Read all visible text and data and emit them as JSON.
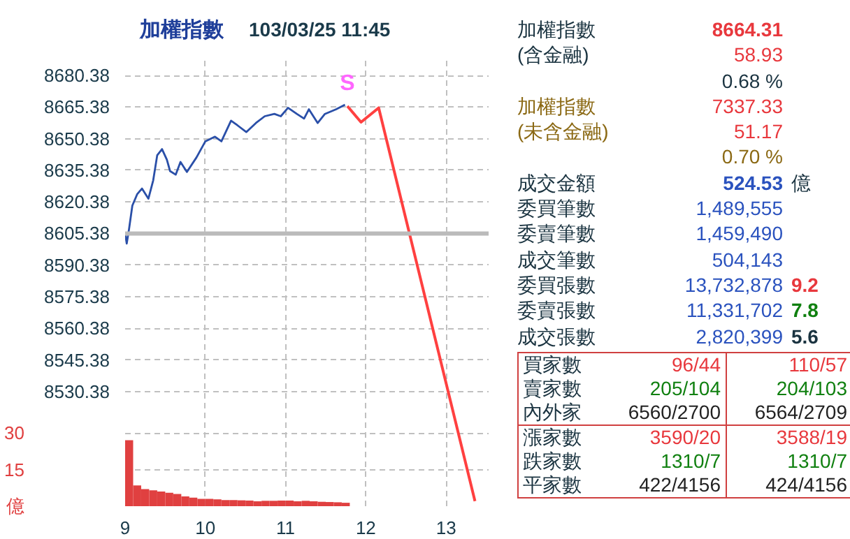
{
  "chart_data": [
    {
      "type": "line",
      "title": "加權指數",
      "subtitle": "103/03/25 11:45",
      "xlim": [
        9,
        13.53
      ],
      "xticks": [
        9,
        10,
        11,
        12,
        13
      ],
      "ylim": [
        8476,
        8688
      ],
      "yticks": [
        8530.38,
        8545.38,
        8560.38,
        8575.38,
        8590.38,
        8605.38,
        8620.38,
        8635.38,
        8650.38,
        8665.38,
        8680.38
      ],
      "y2lim": [
        0,
        183
      ],
      "y2ticks": [
        {
          "value": 0,
          "label": "億"
        },
        15,
        30
      ],
      "grid": true,
      "line_style": "solid",
      "ref_lines": [
        {
          "axis": "y",
          "value": 8605.38,
          "color": "#bbbbbb"
        }
      ],
      "annotations": [
        "S"
      ],
      "series": [
        {
          "color": "#2a4fa8",
          "x": [
            9.0,
            9.02,
            9.05,
            9.09,
            9.15,
            9.21,
            9.29,
            9.35,
            9.4,
            9.46,
            9.52,
            9.56,
            9.63,
            9.69,
            9.77,
            9.89,
            10.0,
            10.12,
            10.2,
            10.32,
            10.4,
            10.51,
            10.63,
            10.74,
            10.86,
            10.94,
            11.03,
            11.14,
            11.23,
            11.29,
            11.4,
            11.49,
            11.63,
            11.74
          ],
          "values": [
            8605.5,
            8600.6,
            8607.8,
            8618.6,
            8624.0,
            8626.7,
            8621.9,
            8630.6,
            8642.5,
            8645.4,
            8640.4,
            8635.0,
            8633.3,
            8639.3,
            8634.6,
            8641.5,
            8649.1,
            8651.3,
            8649.1,
            8658.9,
            8656.7,
            8653.5,
            8657.8,
            8661.0,
            8662.1,
            8661.0,
            8665.0,
            8662.1,
            8659.9,
            8664.3,
            8657.8,
            8662.1,
            8664.3,
            8666.5
          ]
        },
        {
          "type": "line",
          "color": "#ff4040",
          "x": [
            11.77,
            11.94,
            12.16,
            13.36
          ],
          "values": [
            8665.8,
            8658.2,
            8665.0,
            8478.4
          ]
        },
        {
          "type": "bar",
          "axis": "y2",
          "color": "#e04040",
          "x": [
            9.05,
            9.15,
            9.25,
            9.35,
            9.45,
            9.55,
            9.65,
            9.75,
            9.85,
            9.95,
            10.05,
            10.15,
            10.25,
            10.35,
            10.45,
            10.55,
            10.65,
            10.75,
            10.85,
            10.95,
            11.05,
            11.15,
            11.25,
            11.35,
            11.45,
            11.55,
            11.65,
            11.75
          ],
          "values": [
            27,
            8.5,
            7,
            6.5,
            6,
            5.5,
            5,
            4,
            3.5,
            3,
            3,
            2.8,
            2.5,
            2.5,
            2.4,
            2.3,
            2.0,
            2.2,
            2.2,
            2.3,
            2.3,
            2.0,
            2.2,
            2.0,
            1.8,
            1.7,
            1.6,
            1.4
          ]
        }
      ]
    },
    {
      "type": "other",
      "annotations": [
        "加權指數",
        "8664.31",
        "(含金融)",
        "58.93",
        "0.68 %",
        "加權指數",
        "7337.33",
        "(未含金融)",
        "51.17",
        "0.70 %",
        "成交金額",
        "524.53",
        "億",
        "委買筆數",
        "1,489,555",
        "委賣筆數",
        "1,459,490",
        "成交筆數",
        "504,143",
        "委買張數",
        "13,732,878",
        "9.2",
        "委賣張數",
        "11,331,702",
        "7.8",
        "成交張數",
        "2,820,399",
        "5.6",
        "買家數",
        "96/44",
        "110/57",
        "賣家數",
        "205/104",
        "204/103",
        "內外家",
        "6560/2700",
        "6564/2709",
        "漲家數",
        "3590/20",
        "3588/19",
        "跌家數",
        "1310/7",
        "1310/7",
        "平家數",
        "422/4156",
        "424/4156"
      ],
      "colors": [
        "#1a3340",
        "#e8383d",
        "#1a3340",
        "#e8383d",
        "#1a3340",
        "#8b6914",
        "#e8383d",
        "#8b6914",
        "#e8383d",
        "#8b6914",
        "#1a3340",
        "#2a52be",
        "#1a3340",
        "#1a3340",
        "#2a52be",
        "#1a3340",
        "#2a52be",
        "#1a3340",
        "#2a52be",
        "#1a3340",
        "#2a52be",
        "#e8383d",
        "#1a3340",
        "#2a52be",
        "#108010",
        "#1a3340",
        "#2a52be",
        "#1a3340",
        "#1a3340",
        "#e8383d",
        "#e8383d",
        "#1a3340",
        "#108010",
        "#108010",
        "#1a3340",
        "#222222",
        "#222222",
        "#1a3340",
        "#e8383d",
        "#e8383d",
        "#1a3340",
        "#108010",
        "#108010",
        "#1a3340",
        "#222222",
        "#222222"
      ]
    }
  ]
}
